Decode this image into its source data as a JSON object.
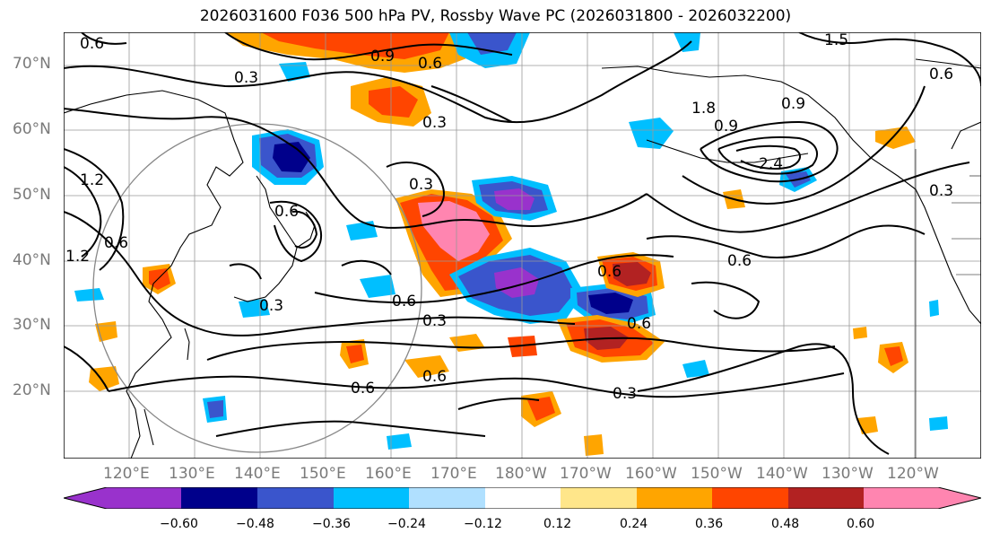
{
  "title": "2026031600 F036 500 hPa PV, Rossby Wave PC (2026031800 - 2026032200)",
  "lat_labels": [
    "70°N",
    "60°N",
    "50°N",
    "40°N",
    "30°N",
    "20°N"
  ],
  "lon_labels": [
    "120°E",
    "130°E",
    "140°E",
    "150°E",
    "160°E",
    "170°E",
    "180°W",
    "170°W",
    "160°W",
    "150°W",
    "140°W",
    "130°W",
    "120°W"
  ],
  "contour_labels": [
    "0.6",
    "0.3",
    "0.9",
    "0.6",
    "1.5",
    "0.6",
    "0.3",
    "1.8",
    "0.9",
    "2.4",
    "0.9",
    "0.3",
    "1.2",
    "0.6",
    "1.2",
    "0.3",
    "0.6",
    "0.3",
    "0.6",
    "0.6",
    "0.6",
    "0.6",
    "0.3",
    "0.6",
    "0.3",
    "0.6"
  ],
  "colorbar": {
    "ticks": [
      "−0.60",
      "−0.48",
      "−0.36",
      "−0.24",
      "−0.12",
      "0.12",
      "0.24",
      "0.36",
      "0.48",
      "0.60"
    ],
    "colors": [
      "#9932CC",
      "#00008B",
      "#3A55CC",
      "#00BFFF",
      "#B0E0FF",
      "#FFFFFF",
      "#FFE68A",
      "#FFA500",
      "#FF4500",
      "#B22222",
      "#FF85B0"
    ]
  }
}
